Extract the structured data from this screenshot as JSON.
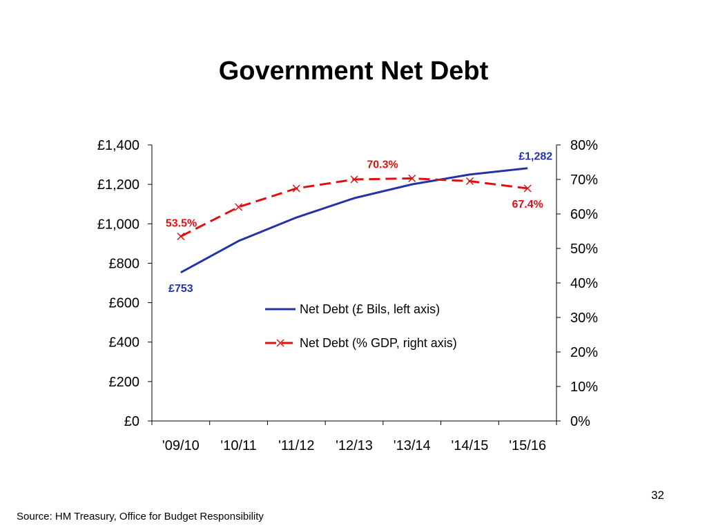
{
  "slide": {
    "page_number": "32",
    "source": "Source: HM Treasury, Office for Budget Responsibility"
  },
  "colors": {
    "debt_line": "#2233aa",
    "gdp_line": "#e01010",
    "axis": "#000000"
  },
  "chart_data": {
    "type": "line",
    "title": "Government Net Debt",
    "categories": [
      "'09/10",
      "'10/11",
      "'11/12",
      "'12/13",
      "'13/14",
      "'14/15",
      "'15/16"
    ],
    "left_axis": {
      "min": 0,
      "max": 1400,
      "ticks": [
        0,
        200,
        400,
        600,
        800,
        1000,
        1200,
        1400
      ],
      "tick_labels": [
        "£0",
        "£200",
        "£400",
        "£600",
        "£800",
        "£1,000",
        "£1,200",
        "£1,400"
      ]
    },
    "right_axis": {
      "min": 0,
      "max": 80,
      "ticks": [
        0,
        10,
        20,
        30,
        40,
        50,
        60,
        70,
        80
      ],
      "tick_labels": [
        "0%",
        "10%",
        "20%",
        "30%",
        "40%",
        "50%",
        "60%",
        "70%",
        "80%"
      ]
    },
    "grid": false,
    "legend_position": "center-right",
    "series": [
      {
        "name": "Net Debt (£ Bils, left axis)",
        "axis": "left",
        "style": "solid",
        "values": [
          753,
          913,
          1032,
          1130,
          1200,
          1250,
          1282
        ],
        "labels": [
          {
            "index": 0,
            "text": "£753",
            "position": "below"
          },
          {
            "index": 6,
            "text": "£1,282",
            "position": "above"
          }
        ]
      },
      {
        "name": "Net Debt (% GDP, right axis)",
        "axis": "right",
        "style": "dashed",
        "marker": "x",
        "values": [
          53.5,
          62.0,
          67.4,
          70.0,
          70.3,
          69.5,
          67.4
        ],
        "labels": [
          {
            "index": 0,
            "text": "53.5%",
            "position": "left"
          },
          {
            "index": 4,
            "text": "70.3%",
            "position": "above-left"
          },
          {
            "index": 6,
            "text": "67.4%",
            "position": "below"
          }
        ]
      }
    ]
  }
}
